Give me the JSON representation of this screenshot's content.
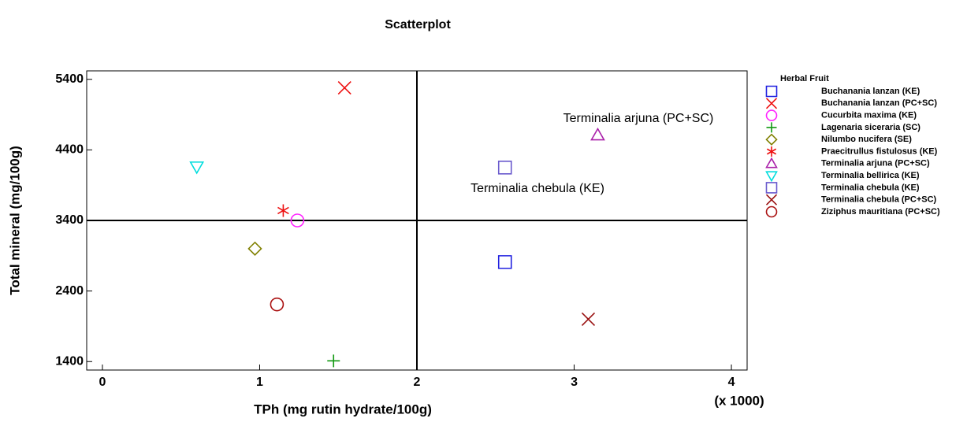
{
  "chart_data": {
    "type": "scatter",
    "title": "Scatterplot",
    "x_label": "TPh (mg rutin hydrate/100g)",
    "x_multiplier_label": "(x 1000)",
    "y_label": "Total mineral (mg/100g)",
    "xlim": [
      -0.1,
      4.1
    ],
    "xticks": [
      0,
      1,
      2,
      3,
      4
    ],
    "ylim": [
      1280,
      5520
    ],
    "yticks": [
      1400,
      2400,
      3400,
      4400,
      5400
    ],
    "reference_lines": {
      "x": 2,
      "y": 3400
    },
    "legend_title": "Herbal Fruit",
    "legend_position": "right",
    "annotations": [
      {
        "text": "Terminalia arjuna (PC+SC)"
      },
      {
        "text": "Terminalia chebula (KE)"
      }
    ],
    "series": [
      {
        "name": "Buchanania lanzan (KE)",
        "color": "#2020e0",
        "marker": "square",
        "x": [
          2.56
        ],
        "values": [
          2810
        ]
      },
      {
        "name": "Buchanania lanzan (PC+SC)",
        "color": "#ee1111",
        "marker": "x",
        "x": [
          1.54
        ],
        "values": [
          5280
        ]
      },
      {
        "name": "Cucurbita maxima (KE)",
        "color": "#ff22ff",
        "marker": "circle",
        "x": [
          1.24
        ],
        "values": [
          3400
        ]
      },
      {
        "name": "Lagenaria siceraria (SC)",
        "color": "#119911",
        "marker": "plus",
        "x": [
          1.47
        ],
        "values": [
          1410
        ]
      },
      {
        "name": "Nilumbo nucifera (SE)",
        "color": "#808000",
        "marker": "diamond",
        "x": [
          0.97
        ],
        "values": [
          3000
        ]
      },
      {
        "name": "Praecitrullus fistulosus (KE)",
        "color": "#ee1111",
        "marker": "asterisk",
        "x": [
          1.15
        ],
        "values": [
          3540
        ]
      },
      {
        "name": "Terminalia arjuna (PC+SC)",
        "color": "#aa22aa",
        "marker": "triangle-up",
        "x": [
          3.15
        ],
        "values": [
          4610
        ]
      },
      {
        "name": "Terminalia bellirica (KE)",
        "color": "#00dddd",
        "marker": "triangle-down",
        "x": [
          0.6
        ],
        "values": [
          4160
        ]
      },
      {
        "name": "Terminalia chebula (KE)",
        "color": "#6a5acd",
        "marker": "square",
        "x": [
          2.56
        ],
        "values": [
          4150
        ]
      },
      {
        "name": "Terminalia chebula (PC+SC)",
        "color": "#991111",
        "marker": "x",
        "x": [
          3.09
        ],
        "values": [
          2000
        ]
      },
      {
        "name": "Ziziphus mauritiana (PC+SC)",
        "color": "#aa1111",
        "marker": "circle",
        "x": [
          1.11
        ],
        "values": [
          2210
        ]
      }
    ]
  }
}
